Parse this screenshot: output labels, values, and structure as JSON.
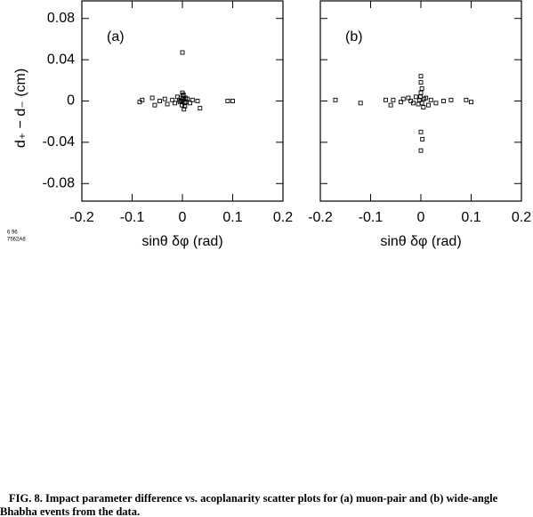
{
  "chart_data": [
    {
      "type": "scatter",
      "panel_label": "(a)",
      "xlabel": "sinθ δφ   (rad)",
      "ylabel": "d₊ − d₋   (cm)",
      "xlim": [
        -0.2,
        0.2
      ],
      "ylim": [
        -0.097,
        0.097
      ],
      "xticks": [
        -0.2,
        -0.1,
        0,
        0.1,
        0.2
      ],
      "yticks": [
        -0.08,
        -0.04,
        0,
        0.04,
        0.08
      ],
      "ytick_labels": true,
      "color": "#000000",
      "x": [
        -0.08,
        -0.085,
        -0.06,
        -0.055,
        -0.045,
        -0.035,
        -0.03,
        -0.02,
        -0.015,
        -0.01,
        -0.005,
        0,
        0,
        0.002,
        -0.003,
        0.005,
        0.003,
        0.01,
        0.015,
        0.02,
        0.03,
        0.035,
        0.09,
        0.1,
        -0.002,
        0.001,
        0.004,
        -0.006,
        0.006,
        -0.001,
        0.002,
        0.007
      ],
      "values": [
        0.001,
        -0.001,
        0.003,
        -0.004,
        0,
        0.002,
        -0.003,
        0.001,
        -0.002,
        0.004,
        -0.001,
        0.047,
        0.008,
        0.005,
        0.003,
        -0.005,
        -0.008,
        0.002,
        -0.002,
        0.001,
        0,
        -0.007,
        0,
        0,
        0,
        0.002,
        -0.002,
        0.001,
        0.003,
        -0.004,
        0.006,
        -0.001
      ]
    },
    {
      "type": "scatter",
      "panel_label": "(b)",
      "xlabel": "sinθ δφ   (rad)",
      "xlim": [
        -0.2,
        0.2
      ],
      "ylim": [
        -0.097,
        0.097
      ],
      "xticks": [
        -0.2,
        -0.1,
        0,
        0.1,
        0.2
      ],
      "yticks": [
        -0.08,
        -0.04,
        0,
        0.04,
        0.08
      ],
      "ytick_labels": false,
      "color": "#000000",
      "x": [
        -0.17,
        -0.12,
        -0.07,
        -0.06,
        -0.055,
        -0.04,
        -0.035,
        -0.025,
        -0.02,
        -0.015,
        -0.01,
        -0.005,
        0,
        0,
        0.002,
        0,
        0,
        0.003,
        0,
        0.005,
        0.01,
        0.015,
        0.02,
        0.03,
        0.045,
        0.06,
        0.09,
        0.1,
        -0.003,
        0.002,
        0.006,
        -0.001
      ],
      "values": [
        0.001,
        -0.002,
        0.001,
        -0.004,
        0.001,
        -0.001,
        0.002,
        0.003,
        0,
        -0.002,
        0.004,
        -0.003,
        0.024,
        0.018,
        0.012,
        0.008,
        -0.03,
        -0.037,
        -0.048,
        -0.006,
        0.003,
        -0.004,
        0.001,
        -0.002,
        0,
        0.001,
        0.001,
        -0.001,
        0.001,
        -0.002,
        0.002,
        0.004
      ]
    }
  ],
  "note": [
    "6 96",
    "7562A8"
  ],
  "caption": [
    "FIG. 8. Impact parameter difference vs. acoplanarity scatter plots for (a) muon-pair and (b) wide-angle",
    "Bhabha events from the data."
  ]
}
